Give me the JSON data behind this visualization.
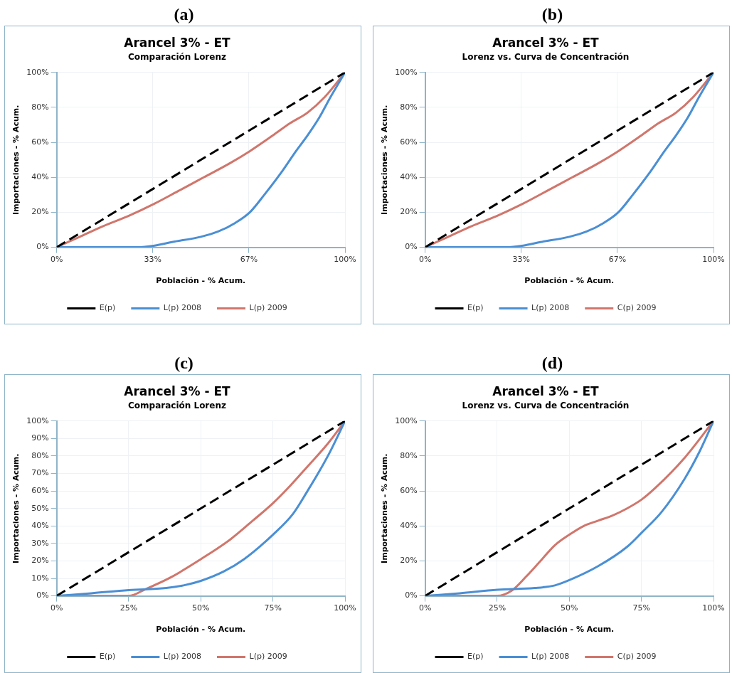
{
  "chart_data": [
    {
      "type": "line",
      "title": "Arancel 3% - ET",
      "subtitle": "Comparación Lorenz",
      "annotations": [
        "(a)"
      ],
      "xlabel": "Población - % Acum.",
      "ylabel": "Importaciones - % Acum.",
      "xlim": [
        0,
        100
      ],
      "ylim": [
        0,
        100
      ],
      "xticks": [
        {
          "value": 0,
          "label": "0%"
        },
        {
          "value": 33.33,
          "label": "33%"
        },
        {
          "value": 66.67,
          "label": "67%"
        },
        {
          "value": 100,
          "label": "100%"
        }
      ],
      "yticks": [
        {
          "value": 0,
          "label": "0%"
        },
        {
          "value": 20,
          "label": "20%"
        },
        {
          "value": 40,
          "label": "40%"
        },
        {
          "value": 60,
          "label": "60%"
        },
        {
          "value": 80,
          "label": "80%"
        },
        {
          "value": 100,
          "label": "100%"
        }
      ],
      "grid": true,
      "legend": "bottom",
      "marker": "none",
      "series": [
        {
          "name": "E(p)",
          "color": "#000000",
          "line_style": "dashed",
          "x": [
            0,
            100
          ],
          "values": [
            0,
            100
          ]
        },
        {
          "name": "L(p) 2008",
          "color": "#4a8fd4",
          "x": [
            0,
            10,
            20,
            28,
            34,
            40,
            50,
            56,
            62,
            67,
            72,
            78,
            83,
            87,
            91,
            95,
            100
          ],
          "values": [
            0,
            0,
            0,
            0,
            1,
            3,
            6,
            9,
            14,
            20,
            30,
            43,
            55,
            64,
            74,
            86,
            100
          ]
        },
        {
          "name": "L(p) 2009",
          "color": "#d0766c",
          "x": [
            0,
            8,
            16,
            25,
            34,
            42,
            51,
            60,
            67,
            75,
            81,
            87,
            93,
            100
          ],
          "values": [
            0,
            6,
            12,
            18,
            25,
            32,
            40,
            48,
            55,
            64,
            71,
            77,
            86,
            100
          ]
        }
      ]
    },
    {
      "type": "line",
      "title": "Arancel 3% - ET",
      "subtitle": "Lorenz vs. Curva de Concentración",
      "annotations": [
        "(b)"
      ],
      "xlabel": "Población - % Acum.",
      "ylabel": "Importaciones - % Acum.",
      "xlim": [
        0,
        100
      ],
      "ylim": [
        0,
        100
      ],
      "xticks": [
        {
          "value": 0,
          "label": "0%"
        },
        {
          "value": 33.33,
          "label": "33%"
        },
        {
          "value": 66.67,
          "label": "67%"
        },
        {
          "value": 100,
          "label": "100%"
        }
      ],
      "yticks": [
        {
          "value": 0,
          "label": "0%"
        },
        {
          "value": 20,
          "label": "20%"
        },
        {
          "value": 40,
          "label": "40%"
        },
        {
          "value": 60,
          "label": "60%"
        },
        {
          "value": 80,
          "label": "80%"
        },
        {
          "value": 100,
          "label": "100%"
        }
      ],
      "grid": true,
      "legend": "bottom",
      "marker": "none",
      "series": [
        {
          "name": "E(p)",
          "color": "#000000",
          "line_style": "dashed",
          "x": [
            0,
            100
          ],
          "values": [
            0,
            100
          ]
        },
        {
          "name": "L(p) 2008",
          "color": "#4a8fd4",
          "x": [
            0,
            10,
            20,
            28,
            34,
            40,
            50,
            56,
            62,
            67,
            72,
            78,
            83,
            87,
            91,
            95,
            100
          ],
          "values": [
            0,
            0,
            0,
            0,
            1,
            3,
            6,
            9,
            14,
            20,
            30,
            43,
            55,
            64,
            74,
            86,
            100
          ]
        },
        {
          "name": "C(p) 2009",
          "color": "#d0766c",
          "x": [
            0,
            8,
            16,
            25,
            34,
            42,
            51,
            60,
            67,
            75,
            81,
            87,
            93,
            100
          ],
          "values": [
            0,
            6,
            12,
            18,
            25,
            32,
            40,
            48,
            55,
            64,
            71,
            77,
            86,
            100
          ]
        }
      ]
    },
    {
      "type": "line",
      "title": "Arancel 3% - ET",
      "subtitle": "Comparación Lorenz",
      "annotations": [
        "(c)"
      ],
      "xlabel": "Población - % Acum.",
      "ylabel": "Importaciones - % Acum.",
      "xlim": [
        0,
        100
      ],
      "ylim": [
        0,
        100
      ],
      "xticks": [
        {
          "value": 0,
          "label": "0%"
        },
        {
          "value": 25,
          "label": "25%"
        },
        {
          "value": 50,
          "label": "50%"
        },
        {
          "value": 75,
          "label": "75%"
        },
        {
          "value": 100,
          "label": "100%"
        }
      ],
      "yticks": [
        {
          "value": 0,
          "label": "0%"
        },
        {
          "value": 10,
          "label": "10%"
        },
        {
          "value": 20,
          "label": "20%"
        },
        {
          "value": 30,
          "label": "30%"
        },
        {
          "value": 40,
          "label": "40%"
        },
        {
          "value": 50,
          "label": "50%"
        },
        {
          "value": 60,
          "label": "60%"
        },
        {
          "value": 70,
          "label": "70%"
        },
        {
          "value": 80,
          "label": "80%"
        },
        {
          "value": 90,
          "label": "90%"
        },
        {
          "value": 100,
          "label": "100%"
        }
      ],
      "grid": true,
      "legend": "bottom",
      "marker": "none",
      "series": [
        {
          "name": "E(p)",
          "color": "#000000",
          "line_style": "dashed",
          "x": [
            0,
            100
          ],
          "values": [
            0,
            100
          ]
        },
        {
          "name": "L(p) 2008",
          "color": "#4a8fd4",
          "x": [
            0,
            12,
            25,
            38,
            44,
            50,
            58,
            65,
            75,
            82,
            87,
            91,
            95,
            100
          ],
          "values": [
            0,
            1.5,
            3.3,
            4.5,
            6,
            8.6,
            14,
            21,
            35,
            47,
            60,
            71,
            83,
            100
          ]
        },
        {
          "name": "L(p) 2009",
          "color": "#d0766c",
          "x": [
            0,
            12,
            25,
            31,
            40,
            50,
            60,
            68,
            75,
            81,
            87,
            94,
            100
          ],
          "values": [
            0,
            0,
            0,
            4,
            11,
            21,
            32,
            43,
            53,
            63,
            74,
            87,
            100
          ]
        }
      ]
    },
    {
      "type": "line",
      "title": "Arancel 3% - ET",
      "subtitle": "Lorenz vs. Curva de Concentración",
      "annotations": [
        "(d)"
      ],
      "xlabel": "Población - % Acum.",
      "ylabel": "Importaciones - % Acum.",
      "xlim": [
        0,
        100
      ],
      "ylim": [
        0,
        100
      ],
      "xticks": [
        {
          "value": 0,
          "label": "0%"
        },
        {
          "value": 25,
          "label": "25%"
        },
        {
          "value": 50,
          "label": "50%"
        },
        {
          "value": 75,
          "label": "75%"
        },
        {
          "value": 100,
          "label": "100%"
        }
      ],
      "yticks": [
        {
          "value": 0,
          "label": "0%"
        },
        {
          "value": 20,
          "label": "20%"
        },
        {
          "value": 40,
          "label": "40%"
        },
        {
          "value": 60,
          "label": "60%"
        },
        {
          "value": 80,
          "label": "80%"
        },
        {
          "value": 100,
          "label": "100%"
        }
      ],
      "grid": true,
      "legend": "bottom",
      "marker": "none",
      "series": [
        {
          "name": "E(p)",
          "color": "#000000",
          "line_style": "dashed",
          "x": [
            0,
            100
          ],
          "values": [
            0,
            100
          ]
        },
        {
          "name": "L(p) 2008",
          "color": "#4a8fd4",
          "x": [
            0,
            12,
            25,
            38,
            45,
            50,
            60,
            70,
            75,
            82,
            90,
            95,
            100
          ],
          "values": [
            0,
            1.5,
            3.5,
            4.5,
            6,
            9,
            17,
            28,
            36,
            48,
            67,
            82,
            100
          ]
        },
        {
          "name": "C(p) 2009",
          "color": "#d0766c",
          "x": [
            0,
            25,
            30,
            35,
            40,
            45,
            50,
            55,
            60,
            65,
            70,
            75,
            80,
            90,
            100
          ],
          "values": [
            0,
            0,
            3,
            11,
            20,
            29,
            35,
            40,
            43,
            46,
            50,
            55,
            62,
            79,
            100
          ]
        }
      ]
    }
  ]
}
